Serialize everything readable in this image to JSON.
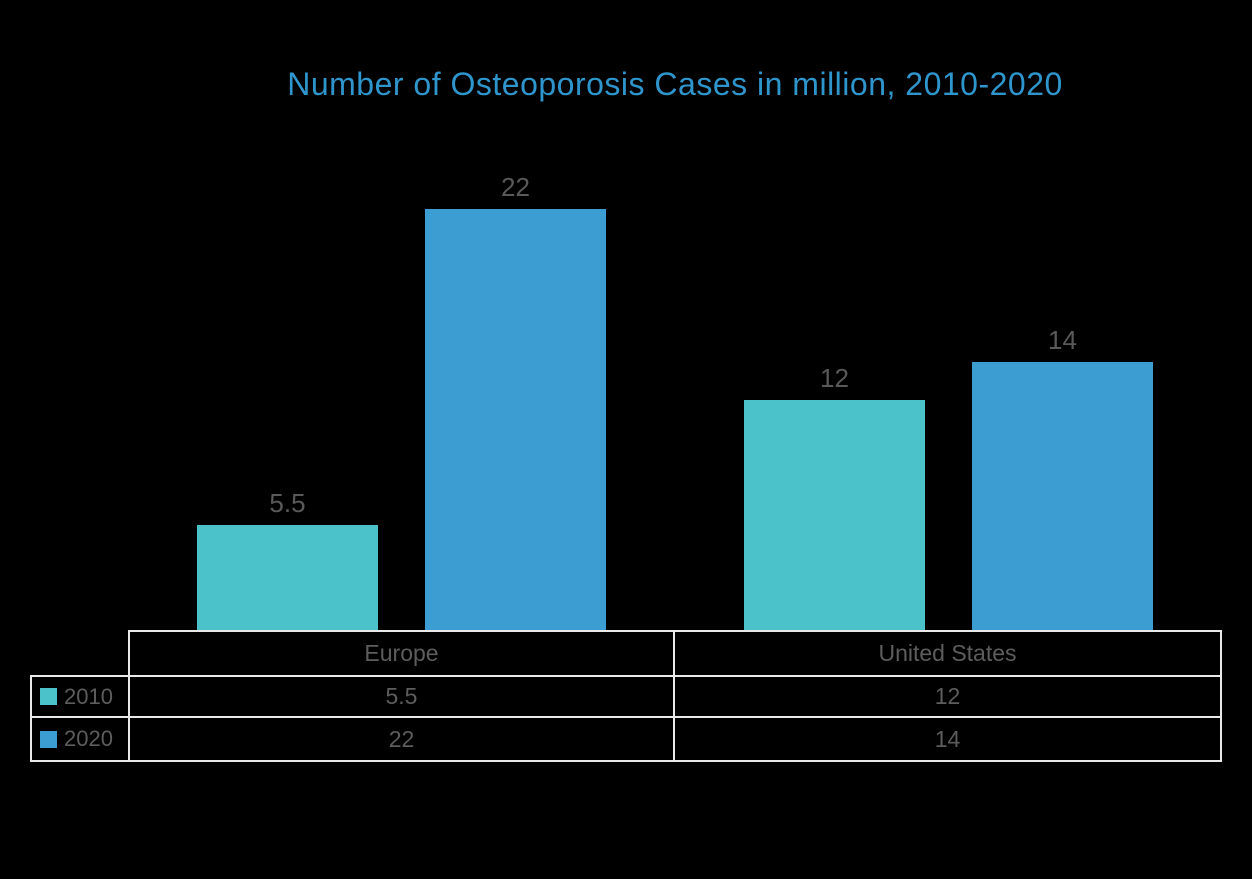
{
  "page": {
    "background": "#000000"
  },
  "colors": {
    "series_2010": "#4BC2C9",
    "series_2020": "#3C9DD3",
    "title": "#2E96CC",
    "data_label": "#595959",
    "table_text": "#5D5D5D",
    "table_border": "#E9E9E9"
  },
  "chart_data": {
    "type": "bar",
    "title": "Number of Osteoporosis Cases in million, 2010-2020",
    "categories": [
      "Europe",
      "United States"
    ],
    "series": [
      {
        "name": "2010",
        "color": "#4BC2C9",
        "values": [
          5.5,
          12
        ]
      },
      {
        "name": "2020",
        "color": "#3C9DD3",
        "values": [
          22,
          14
        ]
      }
    ],
    "ylim": [
      0,
      22
    ],
    "grid": false,
    "axes_visible": false,
    "legend_position": "data-table-left",
    "data_labels_shown": true,
    "data_table_shown": true
  }
}
